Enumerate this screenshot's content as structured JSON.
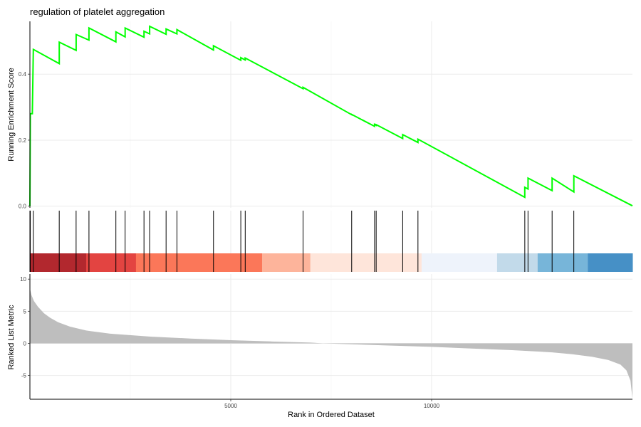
{
  "chart_data": {
    "type": "line",
    "title": "regulation of platelet aggregation",
    "xlabel": "Rank in Ordered Dataset",
    "x_range": [
      0,
      15000
    ],
    "x_ticks": [
      5000,
      10000
    ],
    "grid": true,
    "enrichment": {
      "ylabel": "Running Enrichment Score",
      "ylim": [
        -0.005,
        0.56
      ],
      "y_ticks": [
        0.0,
        0.2,
        0.4
      ],
      "y_tick_labels": [
        "0.0",
        "0.2",
        "0.4"
      ],
      "line_color": "#00ff00",
      "hits": [
        10,
        85,
        730,
        1150,
        1470,
        2140,
        2370,
        2840,
        2980,
        3390,
        3660,
        4570,
        5250,
        5360,
        6800,
        8010,
        8580,
        8620,
        9280,
        9660,
        12320,
        12400,
        13000,
        13540
      ],
      "points": [
        [
          0,
          0.0
        ],
        [
          10,
          0.28
        ],
        [
          60,
          0.28
        ],
        [
          85,
          0.475
        ],
        [
          730,
          0.432
        ],
        [
          730,
          0.497
        ],
        [
          1150,
          0.472
        ],
        [
          1150,
          0.52
        ],
        [
          1470,
          0.503
        ],
        [
          1470,
          0.54
        ],
        [
          2140,
          0.498
        ],
        [
          2140,
          0.528
        ],
        [
          2370,
          0.513
        ],
        [
          2370,
          0.54
        ],
        [
          2840,
          0.512
        ],
        [
          2840,
          0.53
        ],
        [
          2980,
          0.522
        ],
        [
          2980,
          0.545
        ],
        [
          3390,
          0.521
        ],
        [
          3390,
          0.537
        ],
        [
          3660,
          0.522
        ],
        [
          3660,
          0.535
        ],
        [
          4570,
          0.473
        ],
        [
          4570,
          0.486
        ],
        [
          5250,
          0.442
        ],
        [
          5250,
          0.45
        ],
        [
          5360,
          0.443
        ],
        [
          5360,
          0.449
        ],
        [
          6800,
          0.356
        ],
        [
          6800,
          0.36
        ],
        [
          8010,
          0.277
        ],
        [
          8010,
          0.278
        ],
        [
          8580,
          0.242
        ],
        [
          8580,
          0.248
        ],
        [
          8620,
          0.245
        ],
        [
          8620,
          0.247
        ],
        [
          9280,
          0.205
        ],
        [
          9280,
          0.217
        ],
        [
          9660,
          0.193
        ],
        [
          9660,
          0.203
        ],
        [
          12320,
          0.027
        ],
        [
          12320,
          0.057
        ],
        [
          12400,
          0.052
        ],
        [
          12400,
          0.085
        ],
        [
          13000,
          0.047
        ],
        [
          13000,
          0.085
        ],
        [
          13540,
          0.043
        ],
        [
          13540,
          0.092
        ],
        [
          15000,
          0.001
        ]
      ]
    },
    "color_bar": [
      {
        "from": 0,
        "to": 1400,
        "color": "#b2282e"
      },
      {
        "from": 1400,
        "to": 2640,
        "color": "#e34441"
      },
      {
        "from": 2640,
        "to": 5780,
        "color": "#fb7759"
      },
      {
        "from": 5780,
        "to": 6980,
        "color": "#fdb49b"
      },
      {
        "from": 6980,
        "to": 9750,
        "color": "#fee5da"
      },
      {
        "from": 9750,
        "to": 11630,
        "color": "#eef3fb"
      },
      {
        "from": 11630,
        "to": 12640,
        "color": "#c2daea"
      },
      {
        "from": 12640,
        "to": 13890,
        "color": "#77b5d9"
      },
      {
        "from": 13890,
        "to": 15000,
        "color": "#4690c6"
      }
    ],
    "ranked_metric": {
      "ylabel": "Ranked List Metric",
      "ylim": [
        -8.7,
        10.8
      ],
      "y_ticks": [
        10,
        5,
        0,
        -5
      ],
      "y_tick_labels": [
        "10",
        "5",
        "0",
        "-5"
      ],
      "fill_color": "#bebebe",
      "points": [
        [
          0,
          8.5
        ],
        [
          40,
          7.5
        ],
        [
          100,
          6.6
        ],
        [
          200,
          5.7
        ],
        [
          350,
          4.7
        ],
        [
          500,
          4.0
        ],
        [
          700,
          3.3
        ],
        [
          1000,
          2.6
        ],
        [
          1400,
          2.0
        ],
        [
          2000,
          1.5
        ],
        [
          3000,
          1.05
        ],
        [
          4000,
          0.75
        ],
        [
          5000,
          0.5
        ],
        [
          6000,
          0.3
        ],
        [
          7000,
          0.12
        ],
        [
          7300,
          0.0
        ],
        [
          8000,
          -0.15
        ],
        [
          9000,
          -0.35
        ],
        [
          10000,
          -0.55
        ],
        [
          11000,
          -0.8
        ],
        [
          12000,
          -1.05
        ],
        [
          13000,
          -1.4
        ],
        [
          13500,
          -1.7
        ],
        [
          14000,
          -2.1
        ],
        [
          14400,
          -2.6
        ],
        [
          14700,
          -3.3
        ],
        [
          14850,
          -4.2
        ],
        [
          14950,
          -5.8
        ],
        [
          15000,
          -8.6
        ]
      ]
    }
  }
}
